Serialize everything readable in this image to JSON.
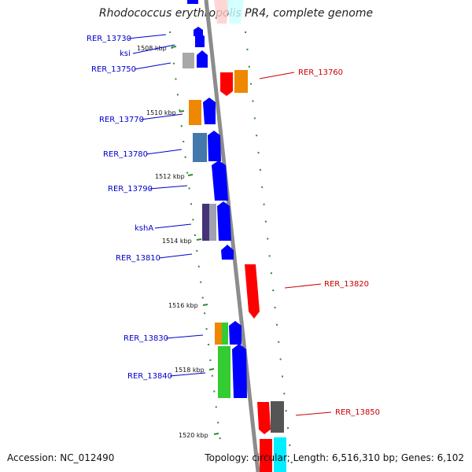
{
  "title": "Rhodococcus erythropolis PR4, complete genome",
  "footer": {
    "accession": "Accession: NC_012490",
    "summary": "Topology: circular; Length: 6,516,310 bp; Genes: 6,102"
  },
  "ticks": [
    "1508 kbp",
    "1510 kbp",
    "1512 kbp",
    "1514 kbp",
    "1516 kbp",
    "1518 kbp",
    "1520 kbp"
  ],
  "genes_left": [
    {
      "id": "RER_13730",
      "color": "#0000cc"
    },
    {
      "id": "ksi",
      "color": "#0000cc"
    },
    {
      "id": "RER_13750",
      "color": "#0000cc"
    },
    {
      "id": "RER_13770",
      "color": "#0000cc"
    },
    {
      "id": "RER_13780",
      "color": "#0000cc"
    },
    {
      "id": "RER_13790",
      "color": "#0000cc"
    },
    {
      "id": "kshA",
      "color": "#0000cc"
    },
    {
      "id": "RER_13810",
      "color": "#0000cc"
    },
    {
      "id": "RER_13830",
      "color": "#0000cc"
    },
    {
      "id": "RER_13840",
      "color": "#0000cc"
    }
  ],
  "genes_right": [
    {
      "id": "RER_13760",
      "color": "#cc0000"
    },
    {
      "id": "RER_13820",
      "color": "#cc0000"
    },
    {
      "id": "RER_13850",
      "color": "#cc0000"
    }
  ],
  "colors": {
    "backbone": "#8c8c8c",
    "tick_dots": "#2e8b2e",
    "forward_strand": "#0000ff",
    "reverse_strand": "#ff0000",
    "orange": "#ee8800",
    "grey": "#a0a0a0",
    "steelblue": "#4477aa",
    "purple": "#443377",
    "green": "#33cc33",
    "cyan": "#00eeff",
    "darkgrey": "#555555"
  }
}
